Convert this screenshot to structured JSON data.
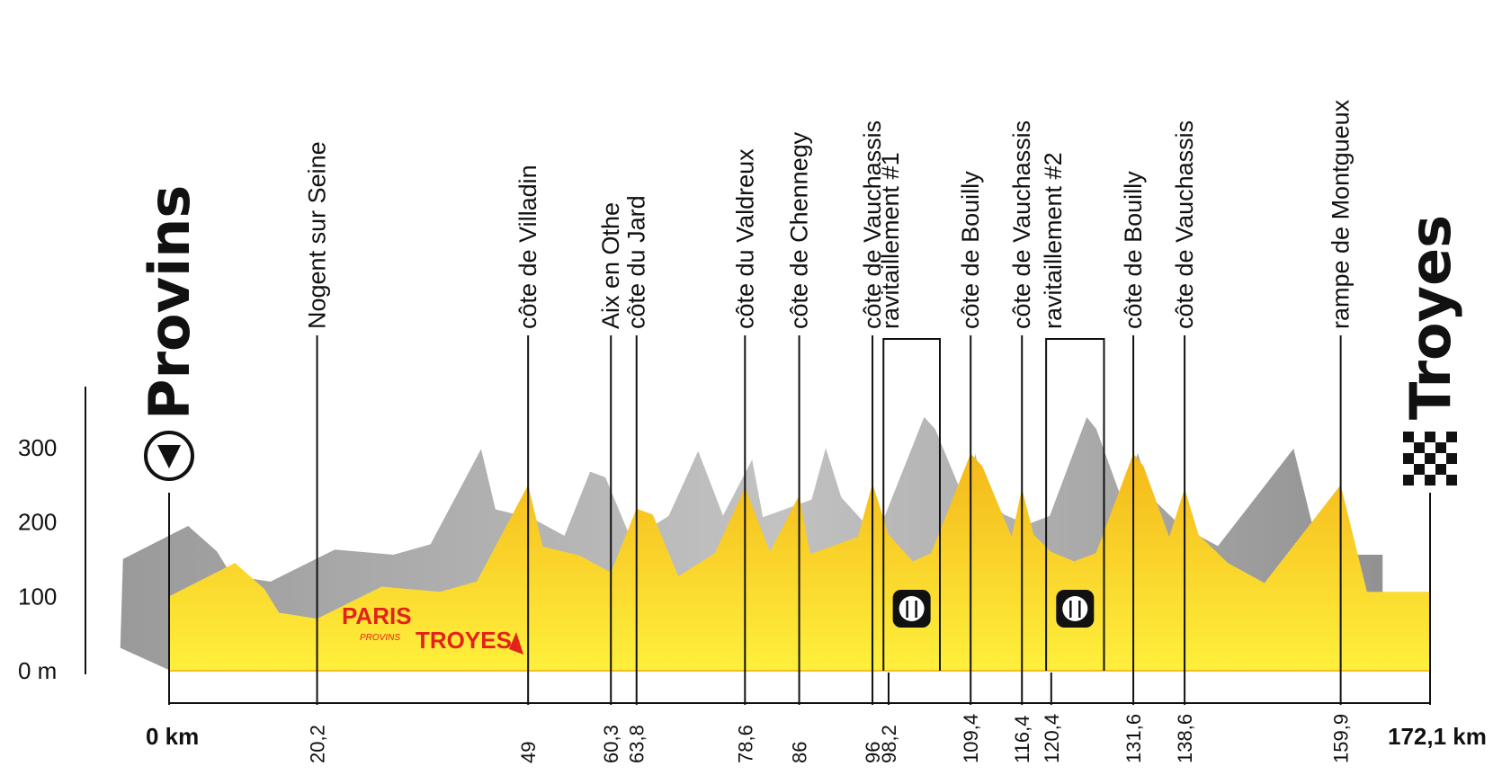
{
  "chart_data": {
    "type": "area",
    "title": "",
    "xlabel": "",
    "ylabel": "",
    "ylim": [
      0,
      300
    ],
    "yticks": [
      "0 m",
      "100",
      "200",
      "300"
    ],
    "start": {
      "name": "Provins",
      "km_label": "0 km"
    },
    "finish": {
      "name": "Troyes",
      "km_label": "172,1 km"
    },
    "distance_km": 172.1,
    "profile": {
      "x": [
        0,
        9,
        13,
        15,
        20.2,
        29,
        37,
        42,
        49,
        51,
        56,
        60.3,
        63.8,
        66,
        69.5,
        74.5,
        78.6,
        82,
        86,
        87.5,
        94,
        96,
        98.2,
        101.5,
        104,
        109.4,
        111,
        115,
        116.4,
        118,
        120.4,
        123.5,
        126.5,
        131.6,
        133,
        136.5,
        138.6,
        140.5,
        144.5,
        149.5,
        159.9,
        163.5,
        168,
        172.1
      ],
      "y": [
        100,
        145,
        110,
        78,
        70,
        113,
        106,
        120,
        250,
        167,
        155,
        132,
        218,
        210,
        127,
        158,
        247,
        160,
        236,
        157,
        180,
        252,
        183,
        147,
        158,
        292,
        275,
        180,
        245,
        183,
        160,
        147,
        158,
        292,
        275,
        180,
        245,
        183,
        145,
        118,
        250,
        106,
        106,
        106
      ]
    },
    "waypoints": [
      {
        "km": 20.2,
        "km_label": "20,2",
        "labels": [
          "Nogent sur Seine"
        ]
      },
      {
        "km": 49,
        "km_label": "49",
        "labels": [
          "côte de Villadin"
        ]
      },
      {
        "km": 60.3,
        "km_label": "60,3",
        "labels": [
          "Aix en Othe"
        ]
      },
      {
        "km": 63.8,
        "km_label": "63,8",
        "labels": [
          "côte du Jard"
        ]
      },
      {
        "km": 78.6,
        "km_label": "78,6",
        "labels": [
          "côte  du Valdreux"
        ]
      },
      {
        "km": 86,
        "km_label": "86",
        "labels": [
          "côte de Chennegy"
        ]
      },
      {
        "km": 96,
        "km_label": "96",
        "labels": [
          "côte de Vauchassis"
        ]
      },
      {
        "km": 98.2,
        "km_label": "98,2",
        "labels": [
          "ravitaillement #1"
        ],
        "bracket": [
          97.5,
          105.2
        ],
        "feed": true
      },
      {
        "km": 109.4,
        "km_label": "109,4",
        "labels": [
          "côte de Bouilly"
        ]
      },
      {
        "km": 116.4,
        "km_label": "116,4",
        "labels": [
          "côte de Vauchassis"
        ]
      },
      {
        "km": 120.4,
        "km_label": "120,4",
        "labels": [
          "ravitaillement #2"
        ],
        "bracket": [
          119.7,
          127.6
        ],
        "feed": true
      },
      {
        "km": 131.6,
        "km_label": "131,6",
        "labels": [
          "côte de Bouilly"
        ]
      },
      {
        "km": 138.6,
        "km_label": "138,6",
        "labels": [
          "côte de Vauchassis"
        ]
      },
      {
        "km": 159.9,
        "km_label": "159,9",
        "labels": [
          "rampe de Montgueux"
        ]
      }
    ],
    "logo": {
      "line1": "PARIS",
      "line2": "PROVINS",
      "line3": "TROYES"
    },
    "colors": {
      "fill_top": "#f4b81a",
      "fill_bottom": "#fff03c",
      "shadow": "#a7a7a7",
      "line": "#111111",
      "logo_red": "#e2231a"
    }
  }
}
